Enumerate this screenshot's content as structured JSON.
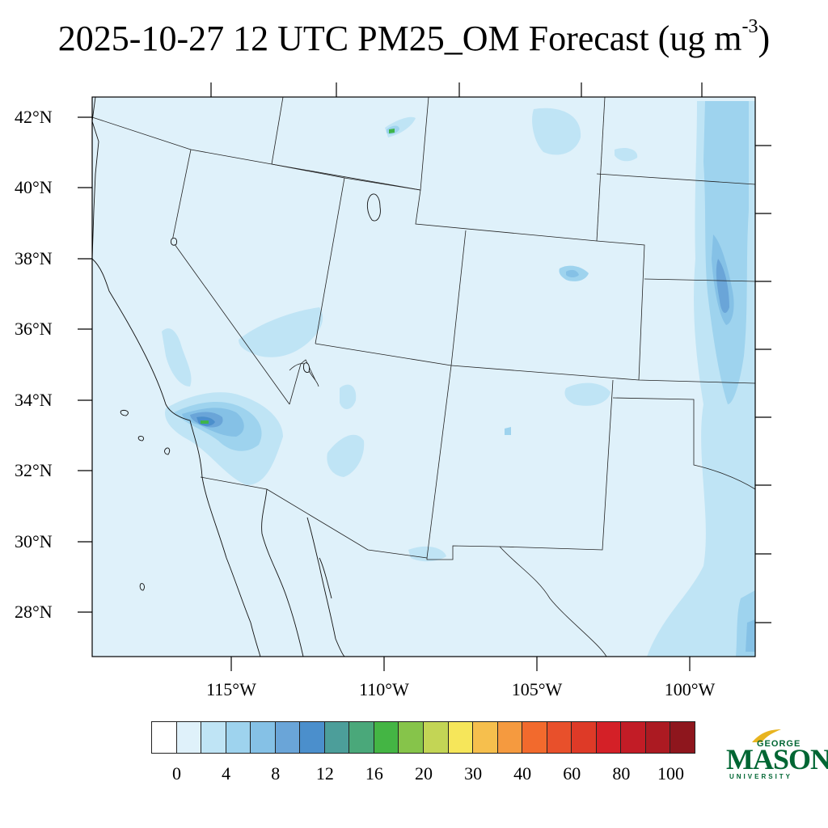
{
  "title": {
    "main": "2025-10-27 12 UTC PM25_OM Forecast (ug m",
    "superscript": "-3",
    "close": ")"
  },
  "map": {
    "lat_labels": [
      "42°N",
      "40°N",
      "38°N",
      "36°N",
      "34°N",
      "32°N",
      "30°N",
      "28°N"
    ],
    "lon_labels": [
      "115°W",
      "110°W",
      "105°W",
      "100°W"
    ],
    "background_fill": "#dff1fa",
    "colors": {
      "light": "#bfe4f5",
      "mid": "#9ed3ee",
      "medium": "#85c1e6",
      "deep": "#6aa5d8",
      "darkblue": "#4b8fcc",
      "green": "#3fb54a"
    }
  },
  "colorbar": {
    "colors": [
      "#ffffff",
      "#dff1fa",
      "#bfe4f5",
      "#9ed3ee",
      "#85c1e6",
      "#6aa5d8",
      "#4b8fcc",
      "#4c9e9a",
      "#4aa87a",
      "#44b544",
      "#86c44a",
      "#c3d555",
      "#f6e65a",
      "#f6bf4d",
      "#f59a3f",
      "#f26a2d",
      "#e8502b",
      "#de3a27",
      "#d42027",
      "#c21c26",
      "#ac1a22",
      "#8e161d"
    ],
    "labels": [
      "0",
      "4",
      "8",
      "12",
      "16",
      "20",
      "30",
      "40",
      "60",
      "80",
      "100"
    ]
  },
  "logo": {
    "george": "GEORGE",
    "mason": "MASON",
    "university": "UNIVERSITY"
  }
}
